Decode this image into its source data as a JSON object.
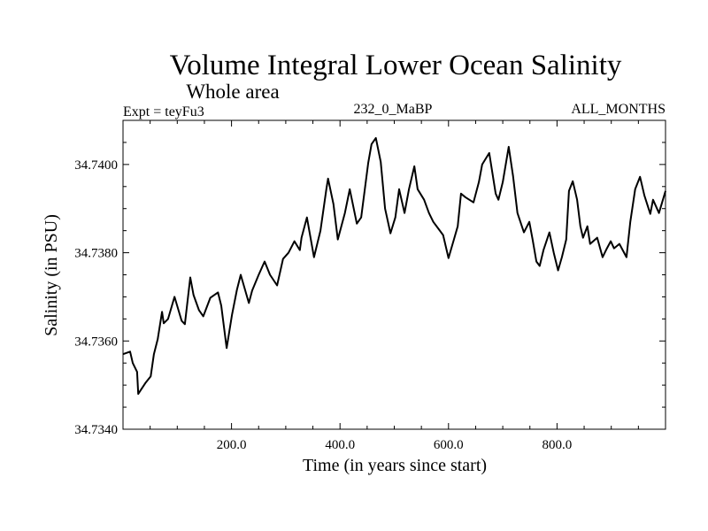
{
  "chart_data": {
    "type": "line",
    "title": "Volume Integral Lower Ocean Salinity",
    "subtitle": "Whole area",
    "annotations": {
      "left": "Expt = teyFu3",
      "center": "232_0_MaBP",
      "right": "ALL_MONTHS"
    },
    "xlabel": "Time (in years since start)",
    "ylabel": "Salinity (in PSU)",
    "xlim": [
      0,
      1000
    ],
    "ylim": [
      34.734,
      34.741
    ],
    "x_ticks": [
      200,
      400,
      600,
      800
    ],
    "x_tick_labels": [
      "200.0",
      "400.0",
      "600.0",
      "800.0"
    ],
    "x_minor_step": 50,
    "y_ticks": [
      34.734,
      34.736,
      34.738,
      34.74
    ],
    "y_tick_labels": [
      "34.7340",
      "34.7360",
      "34.7380",
      "34.7400"
    ],
    "y_minor_step": 0.0005,
    "grid": false,
    "series": [
      {
        "name": "Salinity",
        "color": "#000000",
        "x": [
          0,
          13,
          18,
          26,
          28,
          42,
          51,
          57,
          64,
          72,
          75,
          83,
          95,
          108,
          114,
          124,
          130,
          140,
          148,
          161,
          175,
          181,
          191,
          201,
          210,
          217,
          232,
          238,
          250,
          261,
          271,
          284,
          295,
          305,
          316,
          326,
          329,
          339,
          352,
          364,
          375,
          378,
          388,
          396,
          409,
          418,
          431,
          439,
          452,
          458,
          466,
          475,
          483,
          493,
          502,
          509,
          519,
          527,
          537,
          543,
          555,
          564,
          572,
          584,
          590,
          600,
          610,
          617,
          623,
          631,
          646,
          656,
          662,
          675,
          687,
          692,
          700,
          711,
          719,
          727,
          739,
          749,
          755,
          762,
          768,
          775,
          786,
          794,
          802,
          809,
          817,
          822,
          829,
          837,
          843,
          848,
          856,
          861,
          874,
          884,
          892,
          899,
          905,
          915,
          928,
          935,
          944,
          953,
          961,
          972,
          977,
          988,
          1000
        ],
        "y": [
          34.7357,
          34.73576,
          34.7355,
          34.7353,
          34.7348,
          34.73506,
          34.7352,
          34.7357,
          34.73604,
          34.73666,
          34.7364,
          34.7365,
          34.737,
          34.73646,
          34.73638,
          34.73744,
          34.73704,
          34.7367,
          34.73656,
          34.73698,
          34.7371,
          34.7368,
          34.73584,
          34.7366,
          34.73716,
          34.7375,
          34.73686,
          34.73714,
          34.7375,
          34.7378,
          34.7375,
          34.73726,
          34.73786,
          34.738,
          34.73826,
          34.73806,
          34.73834,
          34.7388,
          34.7379,
          34.7385,
          34.73946,
          34.73968,
          34.7391,
          34.7383,
          34.7389,
          34.73944,
          34.73866,
          34.7388,
          34.74004,
          34.74046,
          34.7406,
          34.74006,
          34.739,
          34.73844,
          34.7388,
          34.73944,
          34.7389,
          34.73944,
          34.73996,
          34.73944,
          34.7392,
          34.7389,
          34.7387,
          34.7385,
          34.7384,
          34.73788,
          34.7383,
          34.7386,
          34.73934,
          34.73926,
          34.73914,
          34.7396,
          34.74,
          34.74026,
          34.73934,
          34.7392,
          34.7396,
          34.7404,
          34.73974,
          34.7389,
          34.73846,
          34.7387,
          34.7383,
          34.7378,
          34.7377,
          34.73806,
          34.73846,
          34.738,
          34.7376,
          34.7379,
          34.7383,
          34.7394,
          34.73962,
          34.7392,
          34.7386,
          34.73834,
          34.7386,
          34.7382,
          34.73834,
          34.7379,
          34.7381,
          34.73826,
          34.7381,
          34.7382,
          34.7379,
          34.7387,
          34.73944,
          34.73972,
          34.7393,
          34.73888,
          34.7392,
          34.7389,
          34.7394
        ]
      }
    ]
  }
}
